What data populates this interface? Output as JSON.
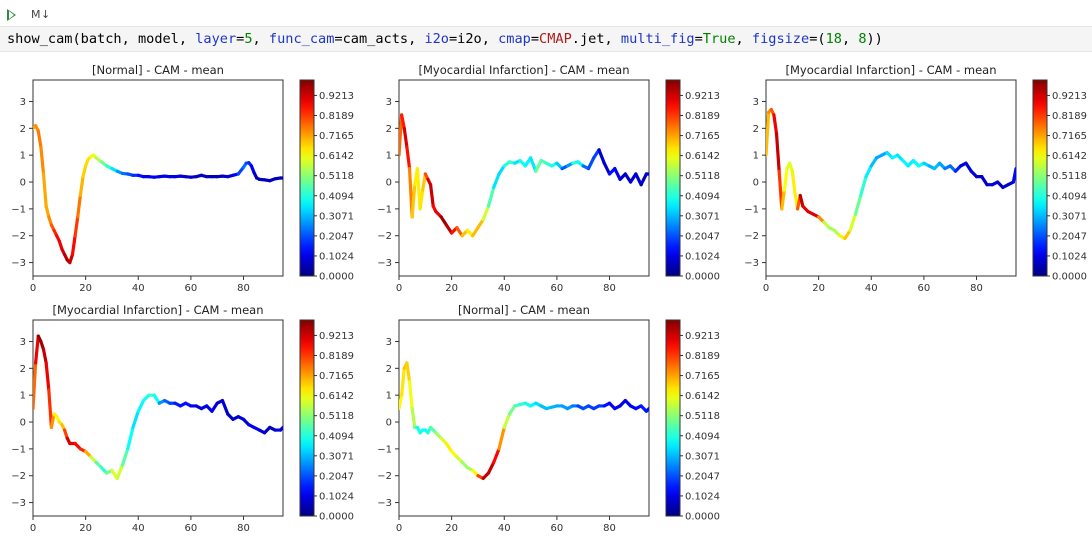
{
  "toolbar": {
    "run_icon": "play-icon",
    "markdown_icon_label": "M↓"
  },
  "code_cell": {
    "tokens": [
      {
        "t": "show_cam(batch, model, ",
        "c": ""
      },
      {
        "t": "layer",
        "c": "kw"
      },
      {
        "t": "=",
        "c": ""
      },
      {
        "t": "5",
        "c": "num"
      },
      {
        "t": ", ",
        "c": ""
      },
      {
        "t": "func_cam",
        "c": "kw"
      },
      {
        "t": "=cam_acts, ",
        "c": ""
      },
      {
        "t": "i2o",
        "c": "kw"
      },
      {
        "t": "=i2o, ",
        "c": ""
      },
      {
        "t": "cmap",
        "c": "kw"
      },
      {
        "t": "=",
        "c": ""
      },
      {
        "t": "CMAP",
        "c": "str"
      },
      {
        "t": ".jet, ",
        "c": ""
      },
      {
        "t": "multi_fig",
        "c": "kw"
      },
      {
        "t": "=",
        "c": ""
      },
      {
        "t": "True",
        "c": "num"
      },
      {
        "t": ", ",
        "c": ""
      },
      {
        "t": "figsize",
        "c": "kw"
      },
      {
        "t": "=(",
        "c": ""
      },
      {
        "t": "18",
        "c": "num"
      },
      {
        "t": ", ",
        "c": ""
      },
      {
        "t": "8",
        "c": "num"
      },
      {
        "t": "))",
        "c": ""
      }
    ]
  },
  "colorbar_ticks": [
    "0.0000",
    "0.1024",
    "0.2047",
    "0.3071",
    "0.4094",
    "0.5118",
    "0.6142",
    "0.7165",
    "0.8189",
    "0.9213"
  ],
  "chart_data": [
    {
      "type": "line",
      "title": "[Normal] - CAM - mean",
      "xlim": [
        0,
        95
      ],
      "ylim": [
        -3.5,
        3.8
      ],
      "xticks": [
        0,
        20,
        40,
        60,
        80
      ],
      "yticks": [
        -3,
        -2,
        -1,
        0,
        1,
        2,
        3
      ],
      "colorscale": "jet",
      "colorbar_range": [
        0,
        1
      ],
      "x": [
        0,
        1,
        2,
        3,
        4,
        5,
        6,
        7,
        8,
        9,
        10,
        11,
        12,
        13,
        14,
        15,
        16,
        17,
        18,
        19,
        20,
        21,
        22,
        23,
        24,
        26,
        28,
        30,
        32,
        34,
        36,
        38,
        40,
        42,
        44,
        46,
        48,
        50,
        52,
        54,
        56,
        58,
        60,
        62,
        64,
        66,
        68,
        70,
        72,
        74,
        76,
        78,
        80,
        81,
        82,
        83,
        84,
        85,
        86,
        88,
        90,
        92,
        94,
        95
      ],
      "y": [
        2.0,
        2.1,
        1.9,
        1.3,
        0.3,
        -0.9,
        -1.3,
        -1.6,
        -1.8,
        -2.0,
        -2.2,
        -2.5,
        -2.7,
        -2.9,
        -3.0,
        -2.7,
        -2.0,
        -1.3,
        -0.5,
        0.2,
        0.6,
        0.85,
        0.95,
        1.0,
        0.9,
        0.75,
        0.6,
        0.5,
        0.4,
        0.32,
        0.3,
        0.25,
        0.25,
        0.2,
        0.2,
        0.18,
        0.2,
        0.22,
        0.2,
        0.2,
        0.22,
        0.2,
        0.18,
        0.2,
        0.25,
        0.2,
        0.2,
        0.2,
        0.22,
        0.2,
        0.25,
        0.3,
        0.55,
        0.7,
        0.72,
        0.6,
        0.35,
        0.15,
        0.1,
        0.08,
        0.05,
        0.12,
        0.15,
        0.15
      ],
      "cam": [
        0.7,
        0.72,
        0.75,
        0.76,
        0.72,
        0.7,
        0.72,
        0.76,
        0.82,
        0.86,
        0.88,
        0.9,
        0.93,
        0.95,
        0.96,
        0.9,
        0.84,
        0.8,
        0.72,
        0.68,
        0.66,
        0.66,
        0.64,
        0.62,
        0.58,
        0.52,
        0.44,
        0.4,
        0.3,
        0.25,
        0.22,
        0.18,
        0.16,
        0.12,
        0.12,
        0.1,
        0.1,
        0.12,
        0.1,
        0.1,
        0.08,
        0.08,
        0.06,
        0.06,
        0.06,
        0.06,
        0.05,
        0.05,
        0.06,
        0.08,
        0.1,
        0.14,
        0.25,
        0.22,
        0.18,
        0.14,
        0.1,
        0.06,
        0.05,
        0.05,
        0.06,
        0.05,
        0.06,
        0.06
      ]
    },
    {
      "type": "line",
      "title": "[Myocardial Infarction] - CAM - mean",
      "xlim": [
        0,
        95
      ],
      "ylim": [
        -3.5,
        3.8
      ],
      "xticks": [
        0,
        20,
        40,
        60,
        80
      ],
      "yticks": [
        -3,
        -2,
        -1,
        0,
        1,
        2,
        3
      ],
      "colorscale": "jet",
      "colorbar_range": [
        0,
        1
      ],
      "x": [
        0,
        1,
        2,
        3,
        4,
        5,
        6,
        7,
        8,
        9,
        10,
        11,
        12,
        13,
        14,
        16,
        18,
        20,
        22,
        24,
        26,
        28,
        30,
        32,
        34,
        36,
        38,
        40,
        42,
        44,
        46,
        48,
        50,
        52,
        54,
        56,
        58,
        60,
        62,
        64,
        66,
        68,
        70,
        72,
        74,
        76,
        78,
        80,
        82,
        84,
        86,
        88,
        90,
        92,
        94,
        95
      ],
      "y": [
        1.0,
        2.5,
        2.0,
        1.3,
        0.5,
        -1.3,
        -0.1,
        0.5,
        -1.0,
        -0.3,
        0.3,
        0.1,
        -0.1,
        -0.9,
        -1.1,
        -1.3,
        -1.6,
        -1.9,
        -1.7,
        -2.0,
        -1.8,
        -2.0,
        -1.7,
        -1.4,
        -0.9,
        -0.2,
        0.3,
        0.6,
        0.75,
        0.7,
        0.8,
        0.6,
        0.9,
        0.4,
        0.8,
        0.7,
        0.6,
        0.7,
        0.5,
        0.6,
        0.7,
        0.75,
        0.6,
        0.5,
        0.9,
        1.2,
        0.7,
        0.3,
        0.5,
        0.1,
        0.3,
        0.0,
        0.3,
        -0.1,
        0.3,
        0.3
      ],
      "cam": [
        0.75,
        0.8,
        0.9,
        0.92,
        0.8,
        0.7,
        0.66,
        0.62,
        0.66,
        0.64,
        0.72,
        0.88,
        0.95,
        0.9,
        0.84,
        0.96,
        0.98,
        0.9,
        0.82,
        0.75,
        0.62,
        0.66,
        0.72,
        0.66,
        0.5,
        0.4,
        0.3,
        0.38,
        0.45,
        0.4,
        0.3,
        0.48,
        0.26,
        0.45,
        0.5,
        0.4,
        0.44,
        0.35,
        0.3,
        0.12,
        0.42,
        0.4,
        0.34,
        0.12,
        0.28,
        0.1,
        0.06,
        0.1,
        0.18,
        0.06,
        0.08,
        0.06,
        0.1,
        0.06,
        0.08,
        0.08
      ]
    },
    {
      "type": "line",
      "title": "[Myocardial Infarction] - CAM - mean",
      "xlim": [
        0,
        95
      ],
      "ylim": [
        -3.5,
        3.8
      ],
      "xticks": [
        0,
        20,
        40,
        60,
        80
      ],
      "yticks": [
        -3,
        -2,
        -1,
        0,
        1,
        2,
        3
      ],
      "colorscale": "jet",
      "colorbar_range": [
        0,
        1
      ],
      "x": [
        0,
        1,
        2,
        3,
        4,
        5,
        6,
        7,
        8,
        9,
        10,
        11,
        12,
        13,
        14,
        16,
        18,
        20,
        22,
        24,
        26,
        28,
        30,
        32,
        34,
        36,
        38,
        40,
        42,
        44,
        46,
        48,
        50,
        52,
        54,
        56,
        58,
        60,
        62,
        64,
        66,
        68,
        70,
        72,
        74,
        76,
        78,
        80,
        82,
        84,
        86,
        88,
        90,
        92,
        94,
        95
      ],
      "y": [
        1.0,
        2.6,
        2.7,
        2.5,
        1.8,
        0.4,
        -1.0,
        -0.3,
        0.5,
        0.7,
        0.4,
        -0.4,
        -1.0,
        -0.5,
        -0.9,
        -1.1,
        -1.2,
        -1.3,
        -1.5,
        -1.7,
        -1.8,
        -2.0,
        -2.1,
        -1.8,
        -1.2,
        -0.5,
        0.2,
        0.6,
        0.9,
        1.0,
        1.1,
        0.9,
        1.0,
        0.8,
        0.6,
        0.8,
        0.6,
        0.7,
        0.6,
        0.5,
        0.7,
        0.5,
        0.6,
        0.4,
        0.6,
        0.7,
        0.4,
        0.2,
        0.2,
        -0.1,
        -0.1,
        0.0,
        -0.2,
        -0.1,
        0.0,
        0.5
      ],
      "cam": [
        0.66,
        0.72,
        0.76,
        0.82,
        0.96,
        0.9,
        0.74,
        0.64,
        0.6,
        0.58,
        0.62,
        0.66,
        0.62,
        0.96,
        0.92,
        0.88,
        0.92,
        0.9,
        0.58,
        0.55,
        0.52,
        0.58,
        0.7,
        0.66,
        0.52,
        0.44,
        0.4,
        0.32,
        0.3,
        0.28,
        0.3,
        0.4,
        0.34,
        0.36,
        0.38,
        0.34,
        0.4,
        0.36,
        0.3,
        0.3,
        0.32,
        0.25,
        0.24,
        0.22,
        0.1,
        0.08,
        0.1,
        0.08,
        0.06,
        0.08,
        0.1,
        0.08,
        0.06,
        0.06,
        0.08,
        0.18
      ]
    },
    {
      "type": "line",
      "title": "[Myocardial Infarction] - CAM - mean",
      "xlim": [
        0,
        95
      ],
      "ylim": [
        -3.5,
        3.8
      ],
      "xticks": [
        0,
        20,
        40,
        60,
        80
      ],
      "yticks": [
        -3,
        -2,
        -1,
        0,
        1,
        2,
        3
      ],
      "colorscale": "jet",
      "colorbar_range": [
        0,
        1
      ],
      "x": [
        0,
        1,
        2,
        3,
        4,
        5,
        6,
        7,
        8,
        9,
        10,
        11,
        12,
        13,
        14,
        16,
        18,
        20,
        22,
        24,
        26,
        28,
        30,
        32,
        34,
        36,
        38,
        40,
        42,
        44,
        46,
        48,
        50,
        52,
        54,
        56,
        58,
        60,
        62,
        64,
        66,
        68,
        70,
        72,
        74,
        76,
        78,
        80,
        82,
        84,
        86,
        88,
        90,
        92,
        94,
        95
      ],
      "y": [
        0.5,
        2.2,
        3.2,
        3.0,
        2.7,
        2.2,
        1.2,
        -0.2,
        0.3,
        0.2,
        0.0,
        -0.1,
        -0.3,
        -0.6,
        -0.8,
        -0.8,
        -1.0,
        -1.1,
        -1.3,
        -1.5,
        -1.7,
        -1.9,
        -1.8,
        -2.1,
        -1.6,
        -1.0,
        -0.2,
        0.4,
        0.8,
        1.0,
        1.0,
        0.7,
        0.8,
        0.7,
        0.7,
        0.6,
        0.7,
        0.6,
        0.6,
        0.5,
        0.6,
        0.4,
        0.7,
        0.8,
        0.3,
        0.1,
        0.2,
        0.1,
        -0.1,
        -0.2,
        -0.3,
        -0.4,
        -0.2,
        -0.3,
        -0.3,
        -0.2
      ],
      "cam": [
        0.74,
        0.8,
        0.98,
        0.99,
        0.95,
        0.92,
        0.86,
        0.8,
        0.66,
        0.62,
        0.64,
        0.66,
        0.72,
        0.9,
        0.94,
        0.86,
        0.88,
        0.8,
        0.62,
        0.52,
        0.4,
        0.44,
        0.52,
        0.66,
        0.5,
        0.42,
        0.34,
        0.36,
        0.38,
        0.4,
        0.46,
        0.3,
        0.24,
        0.2,
        0.18,
        0.12,
        0.16,
        0.12,
        0.1,
        0.08,
        0.1,
        0.12,
        0.08,
        0.05,
        0.1,
        0.06,
        0.08,
        0.1,
        0.08,
        0.12,
        0.1,
        0.08,
        0.06,
        0.06,
        0.1,
        0.1
      ]
    },
    {
      "type": "line",
      "title": "[Normal] - CAM - mean",
      "xlim": [
        0,
        95
      ],
      "ylim": [
        -3.5,
        3.8
      ],
      "xticks": [
        0,
        20,
        40,
        60,
        80
      ],
      "yticks": [
        -3,
        -2,
        -1,
        0,
        1,
        2,
        3
      ],
      "colorscale": "jet",
      "colorbar_range": [
        0,
        1
      ],
      "x": [
        0,
        1,
        2,
        3,
        4,
        5,
        6,
        7,
        8,
        9,
        10,
        11,
        12,
        14,
        16,
        18,
        20,
        22,
        24,
        26,
        28,
        30,
        32,
        34,
        36,
        38,
        40,
        42,
        44,
        46,
        48,
        50,
        52,
        54,
        56,
        58,
        60,
        62,
        64,
        66,
        68,
        70,
        72,
        74,
        76,
        78,
        80,
        82,
        84,
        86,
        88,
        90,
        92,
        94,
        95
      ],
      "y": [
        0.5,
        1.0,
        2.0,
        2.2,
        1.5,
        0.5,
        -0.2,
        -0.2,
        -0.4,
        -0.3,
        -0.3,
        -0.4,
        -0.2,
        -0.4,
        -0.6,
        -0.8,
        -1.1,
        -1.3,
        -1.5,
        -1.7,
        -1.8,
        -2.0,
        -2.1,
        -1.9,
        -1.5,
        -1.0,
        -0.2,
        0.3,
        0.6,
        0.65,
        0.7,
        0.6,
        0.7,
        0.6,
        0.5,
        0.55,
        0.6,
        0.6,
        0.5,
        0.6,
        0.6,
        0.5,
        0.6,
        0.5,
        0.6,
        0.6,
        0.7,
        0.5,
        0.6,
        0.8,
        0.6,
        0.5,
        0.6,
        0.4,
        0.5
      ],
      "cam": [
        0.62,
        0.64,
        0.66,
        0.7,
        0.64,
        0.58,
        0.52,
        0.4,
        0.38,
        0.4,
        0.36,
        0.4,
        0.42,
        0.5,
        0.56,
        0.62,
        0.66,
        0.6,
        0.56,
        0.5,
        0.56,
        0.7,
        0.92,
        0.96,
        0.9,
        0.84,
        0.62,
        0.52,
        0.46,
        0.44,
        0.4,
        0.38,
        0.36,
        0.32,
        0.3,
        0.32,
        0.28,
        0.3,
        0.26,
        0.28,
        0.2,
        0.18,
        0.22,
        0.16,
        0.2,
        0.16,
        0.12,
        0.14,
        0.1,
        0.12,
        0.1,
        0.12,
        0.14,
        0.16,
        0.12
      ]
    }
  ]
}
